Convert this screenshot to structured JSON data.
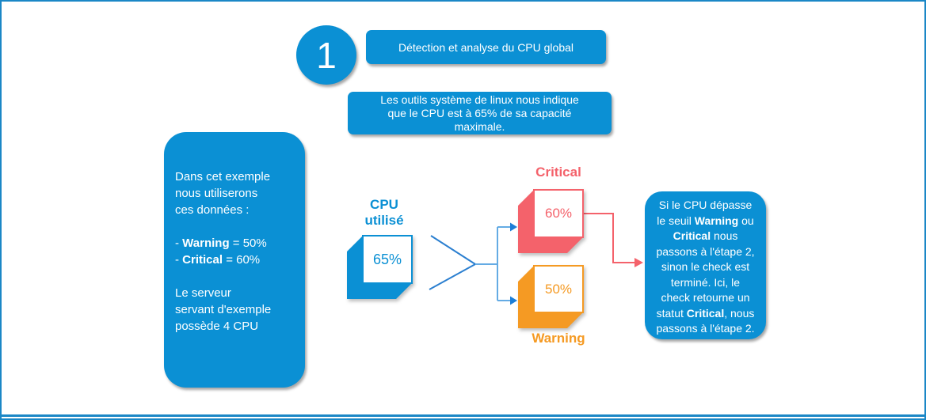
{
  "colors": {
    "brand_blue": "#0B90D4",
    "critical_red": "#F4626B",
    "warning_orange": "#F59A23",
    "connector_blue": "#2B7FD0",
    "branch_blue": "#64ABE4",
    "arrowhead_blue": "#1B7ED8",
    "canvas_border_blue": "#1B87C6"
  },
  "step": {
    "number": "1",
    "title": "Détection et analyse du CPU global"
  },
  "intro_box": {
    "lines": [
      "Les outils système de linux nous indique",
      "que le CPU est à 65% de sa capacité",
      "maximale."
    ]
  },
  "example_box": {
    "lines": [
      [
        {
          "t": "Dans cet exemple"
        }
      ],
      [
        {
          "t": "nous utiliserons"
        }
      ],
      [
        {
          "t": "ces données :"
        }
      ],
      [],
      [
        {
          "t": "- "
        },
        {
          "t": "Warning",
          "b": true
        },
        {
          "t": " = 50%"
        }
      ],
      [
        {
          "t": "- "
        },
        {
          "t": "Critical",
          "b": true
        },
        {
          "t": " = 60%"
        }
      ],
      [],
      [
        {
          "t": "Le serveur"
        }
      ],
      [
        {
          "t": "servant d'exemple"
        }
      ],
      [
        {
          "t": "possède 4 CPU"
        }
      ]
    ]
  },
  "cpu_block": {
    "label_lines": [
      "CPU",
      "utilisé"
    ],
    "value": "65%"
  },
  "thresholds": {
    "critical": {
      "label": "Critical",
      "value": "60%"
    },
    "warning": {
      "label": "Warning",
      "value": "50%"
    }
  },
  "result_box": {
    "lines": [
      [
        {
          "t": "Si le CPU dépasse"
        }
      ],
      [
        {
          "t": "le seuil "
        },
        {
          "t": "Warning",
          "b": true
        },
        {
          "t": " ou"
        }
      ],
      [
        {
          "t": "Critical",
          "b": true
        },
        {
          "t": " nous"
        }
      ],
      [
        {
          "t": "passons à l'étape 2,"
        }
      ],
      [
        {
          "t": "sinon le check est"
        }
      ],
      [
        {
          "t": "terminé. Ici, le"
        }
      ],
      [
        {
          "t": "check retourne un"
        }
      ],
      [
        {
          "t": "statut "
        },
        {
          "t": "Critical",
          "b": true
        },
        {
          "t": ", nous"
        }
      ],
      [
        {
          "t": "passons à l'étape 2."
        }
      ]
    ]
  }
}
